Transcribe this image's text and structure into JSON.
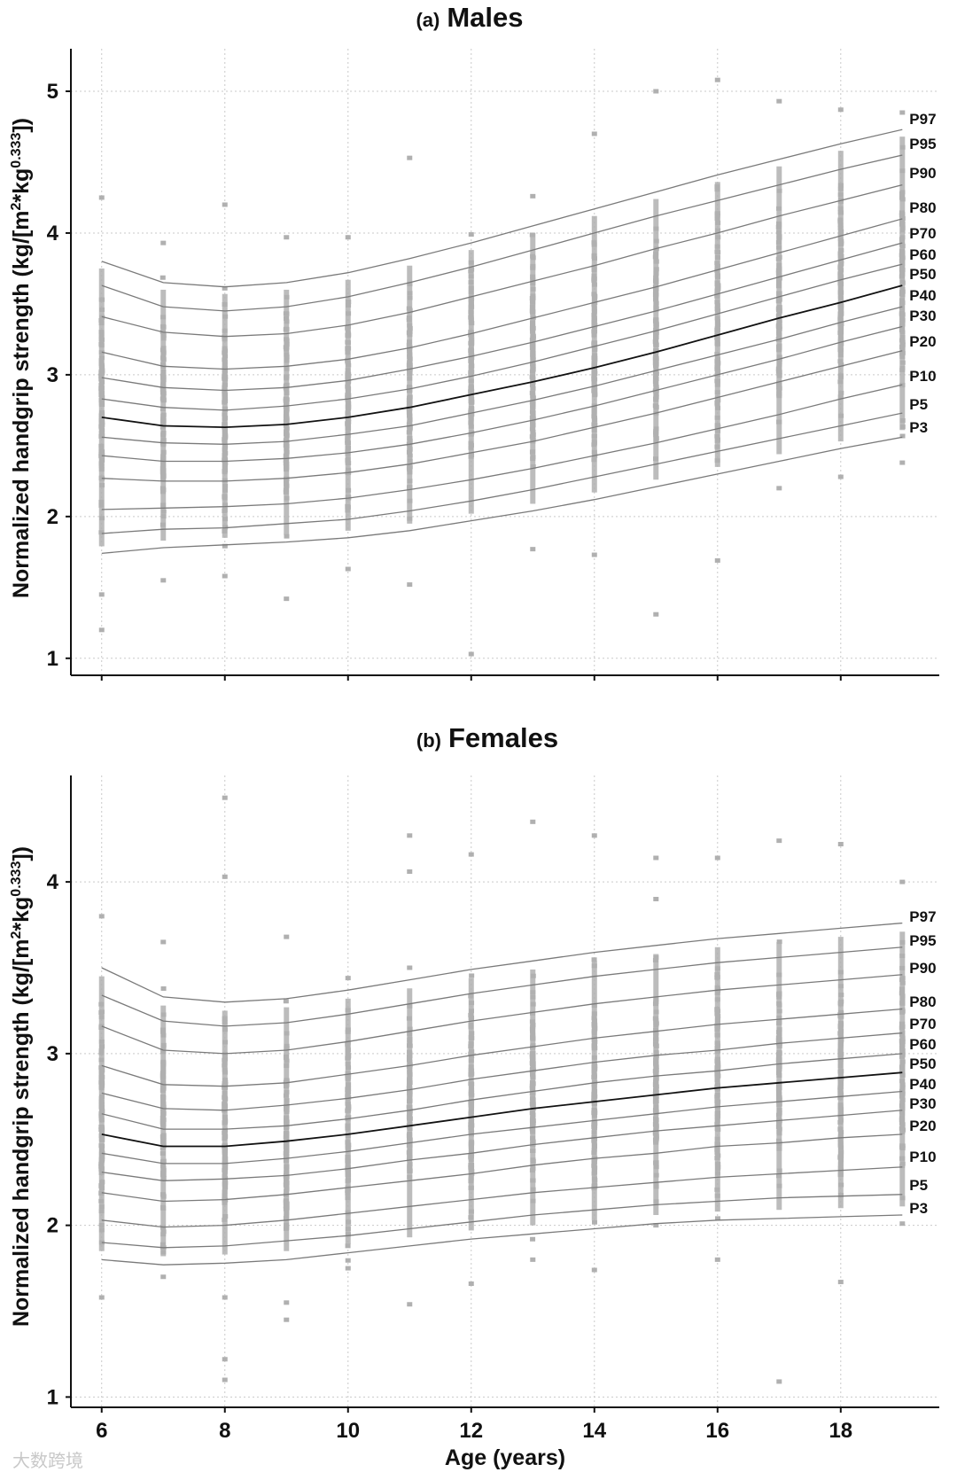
{
  "watermark": "大数跨境",
  "chart_data": [
    {
      "type": "scatter",
      "title_prefix": "(a)",
      "title": "Males",
      "xlabel": "",
      "ylabel": "Normalized handgrip strength (kg/[m²*kg⁰·³³³])",
      "ylabel_parts": {
        "main": "Normalized handgrip strength (kg/[m",
        "sup1": "2",
        "mid": "*kg",
        "sup2": "0.333",
        "end": "])"
      },
      "xlim": [
        5.5,
        19.6
      ],
      "ylim": [
        0.88,
        5.3
      ],
      "xticks": [
        6,
        8,
        10,
        12,
        14,
        16,
        18
      ],
      "yticks": [
        1,
        2,
        3,
        4,
        5
      ],
      "grid": true,
      "x": [
        6,
        7,
        8,
        9,
        10,
        11,
        12,
        13,
        14,
        15,
        16,
        17,
        18,
        19
      ],
      "series": [
        {
          "name": "P97",
          "values": [
            3.8,
            3.65,
            3.62,
            3.65,
            3.72,
            3.82,
            3.93,
            4.05,
            4.17,
            4.29,
            4.41,
            4.52,
            4.63,
            4.73
          ]
        },
        {
          "name": "P95",
          "values": [
            3.63,
            3.48,
            3.45,
            3.48,
            3.55,
            3.65,
            3.76,
            3.88,
            4.0,
            4.12,
            4.23,
            4.34,
            4.45,
            4.55
          ]
        },
        {
          "name": "P90",
          "values": [
            3.41,
            3.3,
            3.27,
            3.29,
            3.35,
            3.44,
            3.55,
            3.66,
            3.77,
            3.89,
            4.0,
            4.12,
            4.23,
            4.34
          ]
        },
        {
          "name": "P80",
          "values": [
            3.16,
            3.06,
            3.04,
            3.06,
            3.11,
            3.19,
            3.29,
            3.4,
            3.51,
            3.62,
            3.74,
            3.86,
            3.98,
            4.1
          ]
        },
        {
          "name": "P70",
          "values": [
            2.98,
            2.91,
            2.89,
            2.91,
            2.96,
            3.04,
            3.13,
            3.23,
            3.34,
            3.45,
            3.57,
            3.69,
            3.81,
            3.93
          ]
        },
        {
          "name": "P60",
          "values": [
            2.83,
            2.77,
            2.75,
            2.78,
            2.83,
            2.9,
            2.99,
            3.09,
            3.2,
            3.31,
            3.43,
            3.55,
            3.67,
            3.78
          ]
        },
        {
          "name": "P50",
          "values": [
            2.7,
            2.64,
            2.63,
            2.65,
            2.7,
            2.77,
            2.86,
            2.95,
            3.05,
            3.16,
            3.28,
            3.4,
            3.51,
            3.63
          ]
        },
        {
          "name": "P40",
          "values": [
            2.56,
            2.52,
            2.51,
            2.53,
            2.58,
            2.64,
            2.73,
            2.82,
            2.92,
            3.03,
            3.14,
            3.25,
            3.37,
            3.48
          ]
        },
        {
          "name": "P30",
          "values": [
            2.43,
            2.39,
            2.39,
            2.41,
            2.45,
            2.51,
            2.59,
            2.68,
            2.78,
            2.89,
            3.0,
            3.11,
            3.23,
            3.34
          ]
        },
        {
          "name": "P20",
          "values": [
            2.27,
            2.25,
            2.25,
            2.27,
            2.31,
            2.37,
            2.45,
            2.53,
            2.63,
            2.73,
            2.84,
            2.95,
            3.06,
            3.17
          ]
        },
        {
          "name": "P10",
          "values": [
            2.05,
            2.06,
            2.07,
            2.09,
            2.13,
            2.19,
            2.26,
            2.34,
            2.43,
            2.52,
            2.62,
            2.72,
            2.83,
            2.93
          ]
        },
        {
          "name": "P5",
          "values": [
            1.88,
            1.91,
            1.92,
            1.95,
            1.98,
            2.04,
            2.11,
            2.19,
            2.28,
            2.37,
            2.46,
            2.55,
            2.64,
            2.73
          ]
        },
        {
          "name": "P3",
          "values": [
            1.74,
            1.78,
            1.8,
            1.82,
            1.85,
            1.9,
            1.97,
            2.04,
            2.12,
            2.21,
            2.3,
            2.39,
            2.48,
            2.56
          ]
        }
      ],
      "highlight_series": "P50",
      "scatter_outliers": [
        {
          "x": 6,
          "y": 4.25
        },
        {
          "x": 6,
          "y": 1.2
        },
        {
          "x": 6,
          "y": 1.45
        },
        {
          "x": 7,
          "y": 3.93
        },
        {
          "x": 7,
          "y": 1.55
        },
        {
          "x": 8,
          "y": 4.2
        },
        {
          "x": 8,
          "y": 1.58
        },
        {
          "x": 9,
          "y": 3.97
        },
        {
          "x": 9,
          "y": 1.42
        },
        {
          "x": 10,
          "y": 3.97
        },
        {
          "x": 10,
          "y": 1.63
        },
        {
          "x": 11,
          "y": 4.53
        },
        {
          "x": 11,
          "y": 1.52
        },
        {
          "x": 12,
          "y": 3.99
        },
        {
          "x": 12,
          "y": 1.03
        },
        {
          "x": 13,
          "y": 4.26
        },
        {
          "x": 13,
          "y": 1.77
        },
        {
          "x": 14,
          "y": 4.7
        },
        {
          "x": 14,
          "y": 1.73
        },
        {
          "x": 15,
          "y": 5.0
        },
        {
          "x": 15,
          "y": 1.31
        },
        {
          "x": 16,
          "y": 5.08
        },
        {
          "x": 16,
          "y": 1.69
        },
        {
          "x": 17,
          "y": 4.93
        },
        {
          "x": 17,
          "y": 2.2
        },
        {
          "x": 18,
          "y": 4.87
        },
        {
          "x": 18,
          "y": 2.28
        },
        {
          "x": 19,
          "y": 4.85
        },
        {
          "x": 19,
          "y": 2.38
        }
      ],
      "scatter_color": "#b0b0b0"
    },
    {
      "type": "scatter",
      "title_prefix": "(b)",
      "title": "Females",
      "xlabel": "Age (years)",
      "ylabel": "Normalized handgrip strength (kg/[m²*kg⁰·³³³])",
      "ylabel_parts": {
        "main": "Normalized handgrip strength (kg/[m",
        "sup1": "2",
        "mid": "*kg",
        "sup2": "0.333",
        "end": "])"
      },
      "xlim": [
        5.5,
        19.6
      ],
      "ylim": [
        0.94,
        4.62
      ],
      "xticks": [
        6,
        8,
        10,
        12,
        14,
        16,
        18
      ],
      "yticks": [
        1,
        2,
        3,
        4
      ],
      "grid": true,
      "x": [
        6,
        7,
        8,
        9,
        10,
        11,
        12,
        13,
        14,
        15,
        16,
        17,
        18,
        19
      ],
      "series": [
        {
          "name": "P97",
          "values": [
            3.5,
            3.33,
            3.3,
            3.32,
            3.37,
            3.43,
            3.49,
            3.54,
            3.59,
            3.63,
            3.67,
            3.7,
            3.73,
            3.76
          ]
        },
        {
          "name": "P95",
          "values": [
            3.34,
            3.19,
            3.16,
            3.18,
            3.23,
            3.29,
            3.35,
            3.4,
            3.45,
            3.49,
            3.53,
            3.56,
            3.59,
            3.62
          ]
        },
        {
          "name": "P90",
          "values": [
            3.16,
            3.02,
            3.0,
            3.02,
            3.07,
            3.13,
            3.19,
            3.24,
            3.29,
            3.33,
            3.37,
            3.4,
            3.43,
            3.46
          ]
        },
        {
          "name": "P80",
          "values": [
            2.93,
            2.82,
            2.81,
            2.83,
            2.88,
            2.93,
            2.99,
            3.04,
            3.09,
            3.13,
            3.17,
            3.2,
            3.23,
            3.26
          ]
        },
        {
          "name": "P70",
          "values": [
            2.77,
            2.68,
            2.67,
            2.7,
            2.74,
            2.79,
            2.85,
            2.9,
            2.95,
            2.99,
            3.02,
            3.06,
            3.09,
            3.12
          ]
        },
        {
          "name": "P60",
          "values": [
            2.65,
            2.56,
            2.56,
            2.58,
            2.62,
            2.67,
            2.73,
            2.78,
            2.83,
            2.87,
            2.9,
            2.94,
            2.97,
            3.0
          ]
        },
        {
          "name": "P50",
          "values": [
            2.53,
            2.46,
            2.46,
            2.49,
            2.53,
            2.58,
            2.63,
            2.68,
            2.72,
            2.76,
            2.8,
            2.83,
            2.86,
            2.89
          ]
        },
        {
          "name": "P40",
          "values": [
            2.42,
            2.36,
            2.36,
            2.39,
            2.43,
            2.48,
            2.53,
            2.57,
            2.61,
            2.65,
            2.69,
            2.72,
            2.75,
            2.78
          ]
        },
        {
          "name": "P30",
          "values": [
            2.31,
            2.26,
            2.27,
            2.29,
            2.33,
            2.38,
            2.42,
            2.47,
            2.51,
            2.55,
            2.58,
            2.61,
            2.64,
            2.67
          ]
        },
        {
          "name": "P20",
          "values": [
            2.19,
            2.14,
            2.15,
            2.18,
            2.22,
            2.26,
            2.3,
            2.35,
            2.39,
            2.42,
            2.46,
            2.48,
            2.51,
            2.53
          ]
        },
        {
          "name": "P10",
          "values": [
            2.03,
            1.99,
            2.0,
            2.03,
            2.07,
            2.11,
            2.15,
            2.19,
            2.22,
            2.25,
            2.28,
            2.3,
            2.32,
            2.34
          ]
        },
        {
          "name": "P5",
          "values": [
            1.9,
            1.87,
            1.88,
            1.91,
            1.94,
            1.98,
            2.02,
            2.06,
            2.09,
            2.12,
            2.14,
            2.16,
            2.17,
            2.18
          ]
        },
        {
          "name": "P3",
          "values": [
            1.8,
            1.77,
            1.78,
            1.8,
            1.84,
            1.88,
            1.92,
            1.95,
            1.98,
            2.01,
            2.03,
            2.04,
            2.05,
            2.06
          ]
        }
      ],
      "highlight_series": "P50",
      "scatter_outliers": [
        {
          "x": 6,
          "y": 3.8
        },
        {
          "x": 6,
          "y": 1.58
        },
        {
          "x": 7,
          "y": 3.65
        },
        {
          "x": 7,
          "y": 1.7
        },
        {
          "x": 8,
          "y": 4.49
        },
        {
          "x": 8,
          "y": 4.03
        },
        {
          "x": 8,
          "y": 1.22
        },
        {
          "x": 8,
          "y": 1.1
        },
        {
          "x": 8,
          "y": 1.58
        },
        {
          "x": 9,
          "y": 3.68
        },
        {
          "x": 9,
          "y": 1.45
        },
        {
          "x": 9,
          "y": 1.55
        },
        {
          "x": 10,
          "y": 3.44
        },
        {
          "x": 10,
          "y": 1.75
        },
        {
          "x": 11,
          "y": 4.27
        },
        {
          "x": 11,
          "y": 4.06
        },
        {
          "x": 11,
          "y": 1.54
        },
        {
          "x": 12,
          "y": 4.16
        },
        {
          "x": 12,
          "y": 1.66
        },
        {
          "x": 13,
          "y": 4.35
        },
        {
          "x": 13,
          "y": 1.8
        },
        {
          "x": 14,
          "y": 4.27
        },
        {
          "x": 14,
          "y": 1.74
        },
        {
          "x": 15,
          "y": 4.14
        },
        {
          "x": 15,
          "y": 3.9
        },
        {
          "x": 15,
          "y": 2.0
        },
        {
          "x": 16,
          "y": 4.14
        },
        {
          "x": 16,
          "y": 1.8
        },
        {
          "x": 17,
          "y": 4.24
        },
        {
          "x": 17,
          "y": 1.09
        },
        {
          "x": 18,
          "y": 4.22
        },
        {
          "x": 18,
          "y": 1.67
        },
        {
          "x": 19,
          "y": 4.0
        },
        {
          "x": 19,
          "y": 2.01
        }
      ],
      "scatter_color": "#b0b0b0"
    }
  ]
}
